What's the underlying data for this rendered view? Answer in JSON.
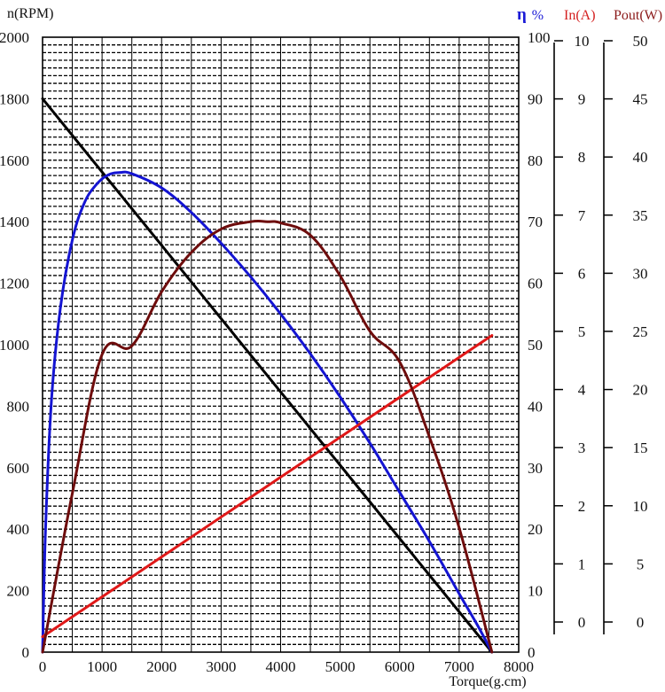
{
  "chart_data": {
    "type": "line",
    "title": "",
    "xlabel": "Torque(g.cm)",
    "ylabel": "n(RPM)",
    "xlim": [
      0,
      8000
    ],
    "x_ticks": [
      "0",
      "1000",
      "2000",
      "3000",
      "4000",
      "5000",
      "6000",
      "7000",
      "8000"
    ],
    "axes": {
      "speed": {
        "label": "n(RPM)",
        "min": 0,
        "max": 2000,
        "ticks": [
          "0",
          "200",
          "400",
          "600",
          "800",
          "1000",
          "1200",
          "1400",
          "1600",
          "1800",
          "2000"
        ],
        "color": "#111111"
      },
      "efficiency": {
        "label": "η",
        "unit": "%",
        "min": 0,
        "max": 100,
        "ticks": [
          "0",
          "10",
          "20",
          "30",
          "40",
          "50",
          "60",
          "70",
          "80",
          "90",
          "100"
        ],
        "color": "#1a1ad6"
      },
      "current": {
        "label": "In(A)",
        "min": 0,
        "max": 10,
        "ticks": [
          "0",
          "1",
          "2",
          "3",
          "4",
          "5",
          "6",
          "7",
          "8",
          "9",
          "10"
        ],
        "color": "#d42020"
      },
      "power": {
        "label": "Pout(W)",
        "min": 0,
        "max": 50,
        "ticks": [
          "0",
          "5",
          "10",
          "15",
          "20",
          "25",
          "30",
          "35",
          "40",
          "45",
          "50"
        ],
        "color": "#8b1a1a"
      }
    },
    "series": [
      {
        "name": "n(RPM)",
        "axis": "speed",
        "color": "#000000",
        "x": [
          0,
          7550
        ],
        "values": [
          1800,
          0
        ]
      },
      {
        "name": "η %",
        "axis": "efficiency",
        "color": "#1414d2",
        "x": [
          0,
          50,
          150,
          300,
          500,
          700,
          900,
          1100,
          1300,
          1500,
          2000,
          2500,
          3000,
          3500,
          4000,
          4500,
          5000,
          5500,
          6000,
          6500,
          7000,
          7300,
          7550
        ],
        "values": [
          0,
          20,
          41,
          56,
          67,
          73,
          76,
          77.6,
          78,
          77.8,
          75.5,
          71.5,
          66.5,
          61,
          55,
          48.5,
          41.5,
          34,
          26,
          18,
          9.5,
          4.5,
          0
        ]
      },
      {
        "name": "In(A)",
        "axis": "current",
        "color": "#e01818",
        "x": [
          0,
          7550
        ],
        "values": [
          0.25,
          5.15
        ]
      },
      {
        "name": "Pout(W)",
        "axis": "power",
        "color": "#6e0c0c",
        "x": [
          0,
          500,
          1000,
          1500,
          2000,
          2500,
          3000,
          3500,
          3775,
          4000,
          4500,
          5000,
          5500,
          6000,
          6500,
          7000,
          7550
        ],
        "values": [
          0,
          12.9,
          24.2,
          24.9,
          29.3,
          32.5,
          34.4,
          35,
          35,
          34.9,
          33.9,
          30.6,
          26.1,
          23.6,
          17.5,
          10.1,
          0
        ]
      }
    ]
  }
}
